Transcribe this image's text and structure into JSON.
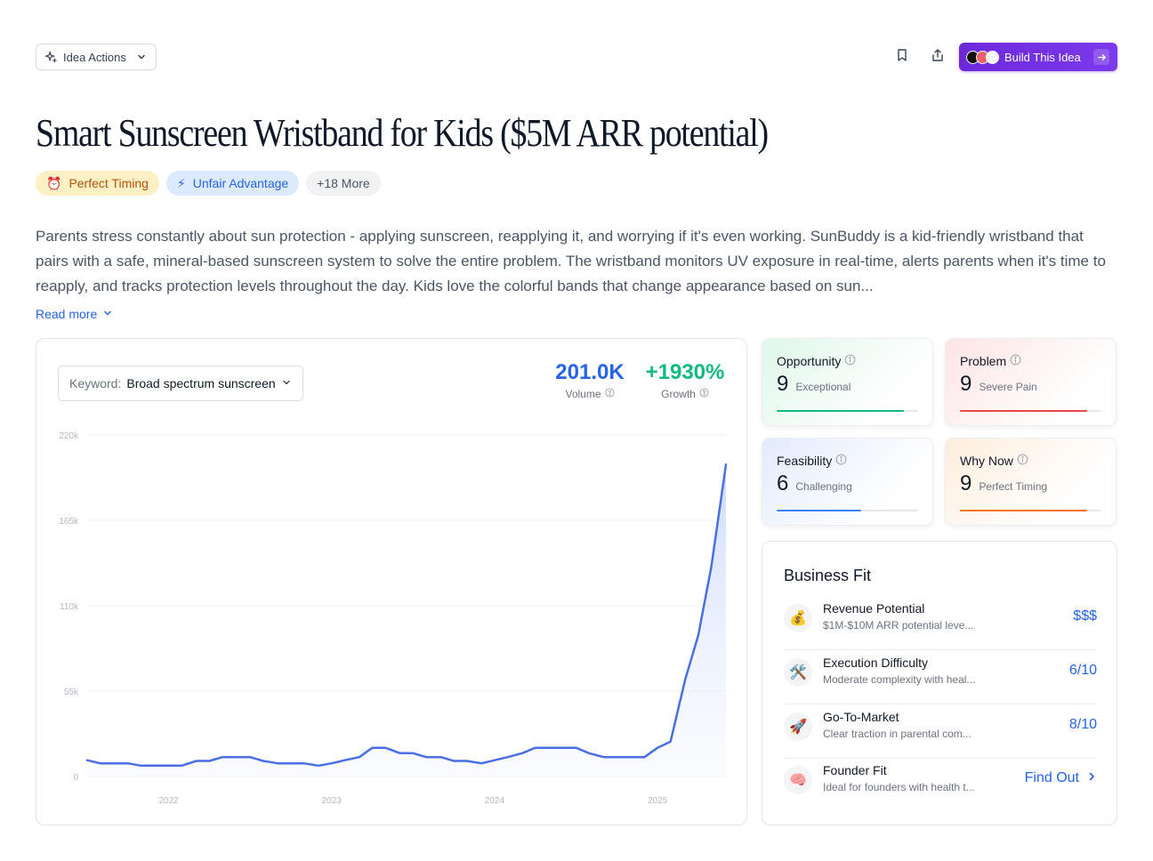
{
  "toolbar": {
    "idea_actions_label": "Idea Actions",
    "build_label": "Build This Idea"
  },
  "title": "Smart Sunscreen Wristband for Kids ($5M ARR potential)",
  "tags": [
    {
      "icon": "⏰",
      "label": "Perfect Timing"
    },
    {
      "icon": "⚡",
      "label": "Unfair Advantage"
    },
    {
      "label": "+18 More"
    }
  ],
  "description": "Parents stress constantly about sun protection - applying sunscreen, reapplying it, and worrying if it's even working. SunBuddy is a kid-friendly wristband that pairs with a safe, mineral-based sunscreen system to solve the entire problem. The wristband monitors UV exposure in real-time, alerts parents when it's time to reapply, and tracks protection levels throughout the day. Kids love the colorful bands that change appearance based on sun...",
  "read_more_label": "Read more",
  "keyword": {
    "label": "Keyword:",
    "value": "Broad spectrum sunscreen"
  },
  "stats": {
    "volume_value": "201.0K",
    "volume_label": "Volume",
    "growth_value": "+1930%",
    "growth_label": "Growth"
  },
  "colors": {
    "line": "#4a6fe3",
    "volume": "#2563eb",
    "growth": "#10b981"
  },
  "chart_data": {
    "type": "area",
    "title": "",
    "xlabel": "",
    "ylabel": "",
    "ylim": [
      0,
      220000
    ],
    "y_ticks": [
      0,
      55000,
      110000,
      165000,
      220000
    ],
    "y_tick_labels": [
      "0",
      "55k",
      "110k",
      "165k",
      "220k"
    ],
    "x_ticks": [
      2022,
      2023,
      2024,
      2025
    ],
    "x_tick_labels": [
      "2022",
      "2023",
      "2024",
      "2025"
    ],
    "xlim": [
      2021.5,
      2025.42
    ],
    "grid": true,
    "series": [
      {
        "x": [
          2021.5,
          2021.58,
          2021.67,
          2021.75,
          2021.83,
          2021.92,
          2022.0,
          2022.08,
          2022.17,
          2022.25,
          2022.33,
          2022.42,
          2022.5,
          2022.58,
          2022.67,
          2022.75,
          2022.83,
          2022.92,
          2023.0,
          2023.08,
          2023.17,
          2023.25,
          2023.33,
          2023.42,
          2023.5,
          2023.58,
          2023.67,
          2023.75,
          2023.83,
          2023.92,
          2024.0,
          2024.08,
          2024.17,
          2024.25,
          2024.33,
          2024.42,
          2024.5,
          2024.58,
          2024.67,
          2024.75,
          2024.83,
          2024.92,
          2025.0,
          2025.08,
          2025.17,
          2025.25,
          2025.33,
          2025.42
        ],
        "values": [
          10500,
          8500,
          8500,
          8500,
          7000,
          7000,
          7000,
          7000,
          10000,
          10000,
          12500,
          12500,
          12500,
          10000,
          8500,
          8500,
          8500,
          7000,
          8500,
          10500,
          12500,
          18500,
          18500,
          15000,
          15000,
          12500,
          12500,
          10000,
          10000,
          8500,
          10500,
          12500,
          15000,
          18500,
          18500,
          18500,
          18500,
          15000,
          12500,
          12500,
          12500,
          12500,
          18500,
          22500,
          62500,
          91000,
          135000,
          201000
        ]
      }
    ]
  },
  "metrics": [
    {
      "name": "Opportunity",
      "score": "9",
      "desc": "Exceptional",
      "value": 0.9,
      "color": "#10b981"
    },
    {
      "name": "Problem",
      "score": "9",
      "desc": "Severe Pain",
      "value": 0.9,
      "color": "#ef4444"
    },
    {
      "name": "Feasibility",
      "score": "6",
      "desc": "Challenging",
      "value": 0.6,
      "color": "#3b82f6"
    },
    {
      "name": "Why Now",
      "score": "9",
      "desc": "Perfect Timing",
      "value": 0.9,
      "color": "#f97316"
    }
  ],
  "business_fit": {
    "title": "Business Fit",
    "rows": [
      {
        "icon": "💰",
        "name": "Revenue Potential",
        "sub": "$1M-$10M ARR potential leve...",
        "value": "$$$"
      },
      {
        "icon": "🛠️",
        "name": "Execution Difficulty",
        "sub": "Moderate complexity with heal...",
        "value": "6/10"
      },
      {
        "icon": "🚀",
        "name": "Go-To-Market",
        "sub": "Clear traction in parental com...",
        "value": "8/10"
      },
      {
        "icon": "🧠",
        "name": "Founder Fit",
        "sub": "Ideal for founders with health t...",
        "value": "Find Out"
      }
    ]
  }
}
